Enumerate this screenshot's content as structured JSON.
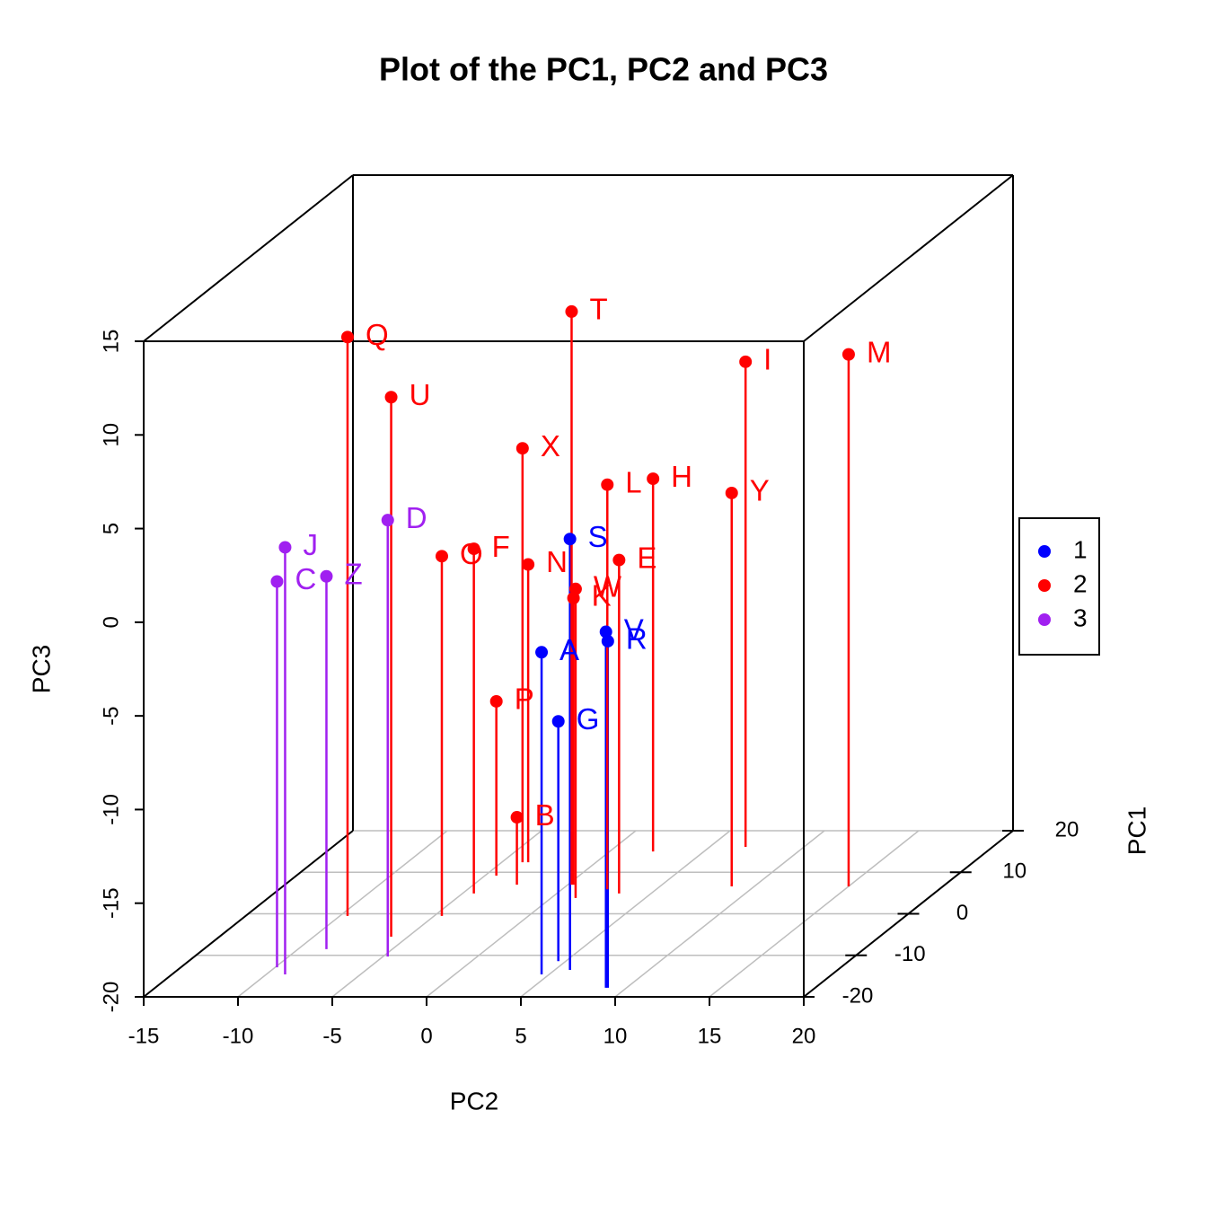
{
  "chart_data": {
    "type": "scatter3d",
    "title": "Plot of the PC1, PC2 and PC3",
    "x_label": "PC2",
    "y_label": "PC1",
    "z_label": "PC3",
    "xlim": [
      -15,
      20
    ],
    "xticks": [
      -15,
      -10,
      -5,
      0,
      5,
      10,
      15,
      20
    ],
    "ylim": [
      -20,
      20
    ],
    "yticks": [
      -20,
      -10,
      0,
      10,
      20
    ],
    "zlim": [
      -20,
      15
    ],
    "zticks": [
      -20,
      -15,
      -10,
      -5,
      0,
      5,
      10,
      15
    ],
    "grid": true,
    "legend_position": "right",
    "series": [
      {
        "name": "1",
        "color": "#0000ff",
        "labels": [
          "S",
          "V",
          "R",
          "A",
          "G"
        ],
        "x": [
          5.8,
          8.9,
          9.0,
          4.6,
          4.6
        ],
        "y": [
          -13.5,
          -17.8,
          -17.8,
          -14.6,
          -11.4
        ],
        "z": [
          3.0,
          -1.0,
          -1.5,
          -2.8,
          -7.2
        ]
      },
      {
        "name": "2",
        "color": "#ff0000",
        "labels": [
          "Q",
          "T",
          "M",
          "I",
          "U",
          "X",
          "L",
          "H",
          "Y",
          "O",
          "F",
          "N",
          "E",
          "W",
          "K",
          "P",
          "B"
        ],
        "x": [
          -9.6,
          0.2,
          15.0,
          6.9,
          -5.9,
          -3.9,
          2.4,
          2.3,
          8.8,
          -4.6,
          -4.4,
          -3.6,
          3.3,
          1.3,
          0.3,
          -4.4,
          -2.7
        ],
        "y": [
          -0.5,
          7.0,
          6.6,
          16.1,
          -5.5,
          12.4,
          5.9,
          15.0,
          6.6,
          -0.5,
          4.9,
          12.4,
          4.9,
          3.8,
          7.0,
          9.2,
          7.0
        ],
        "z": [
          10.9,
          10.6,
          8.4,
          5.9,
          8.8,
          2.1,
          1.6,
          -0.1,
          1.0,
          -0.8,
          -1.6,
          -4.1,
          -2.2,
          -3.5,
          -4.7,
          -10.7,
          -16.4
        ]
      },
      {
        "name": "3",
        "color": "#a020f0",
        "labels": [
          "D",
          "J",
          "C",
          "Z"
        ],
        "x": [
          -4.75,
          -9.0,
          -9.9,
          -8.5
        ],
        "y": [
          -10.3,
          -14.6,
          -12.9,
          -8.5
        ],
        "z": [
          3.3,
          2.8,
          0.6,
          -0.1
        ]
      }
    ]
  }
}
